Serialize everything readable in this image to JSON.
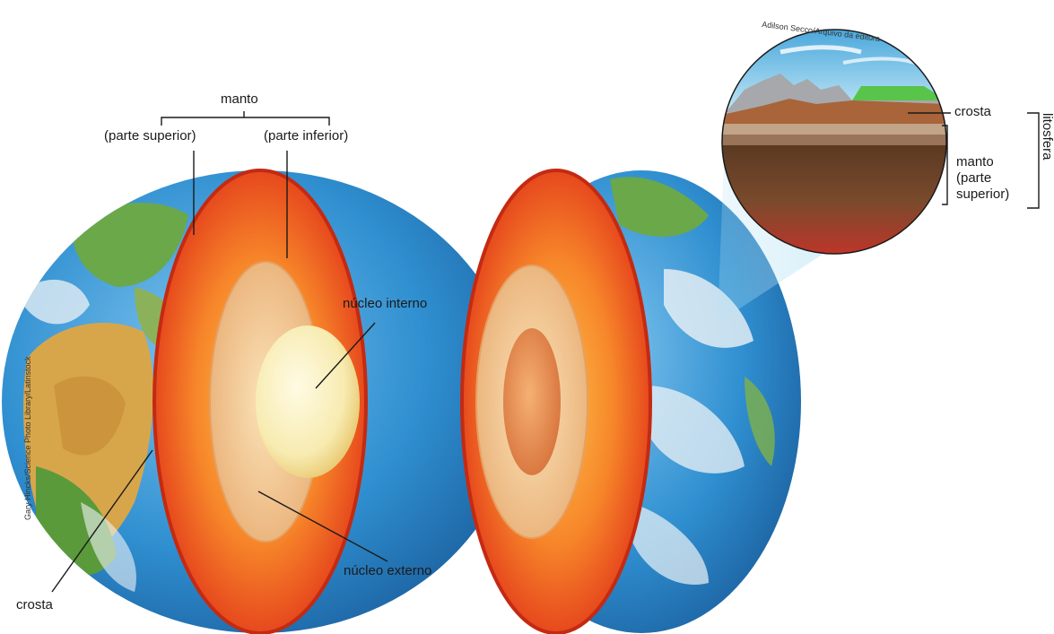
{
  "labels": {
    "manto": "manto",
    "parte_superior": "(parte superior)",
    "parte_inferior": "(parte inferior)",
    "nucleo_interno": "núcleo interno",
    "nucleo_externo": "núcleo externo",
    "crosta_left": "crosta",
    "crosta_right": "crosta",
    "manto_parte_superior": "manto\n(parte\nsuperior)",
    "litosfera": "litosfera"
  },
  "credits": {
    "left": "Gary Hincks/Science Photo Library/Latinstock",
    "right": "Adilson Secco/Arquivo da editora"
  },
  "colors": {
    "ocean": "#2f8fd0",
    "land_green": "#5a9a3a",
    "land_desert": "#d8a64a",
    "mantle_outer": "#e8401a",
    "mantle_inner": "#f59a2a",
    "outer_core": "#f4d2a0",
    "inner_core": "#fbf3c6",
    "crust_brown": "#a9643a",
    "leader_line": "#1a1a1a"
  }
}
